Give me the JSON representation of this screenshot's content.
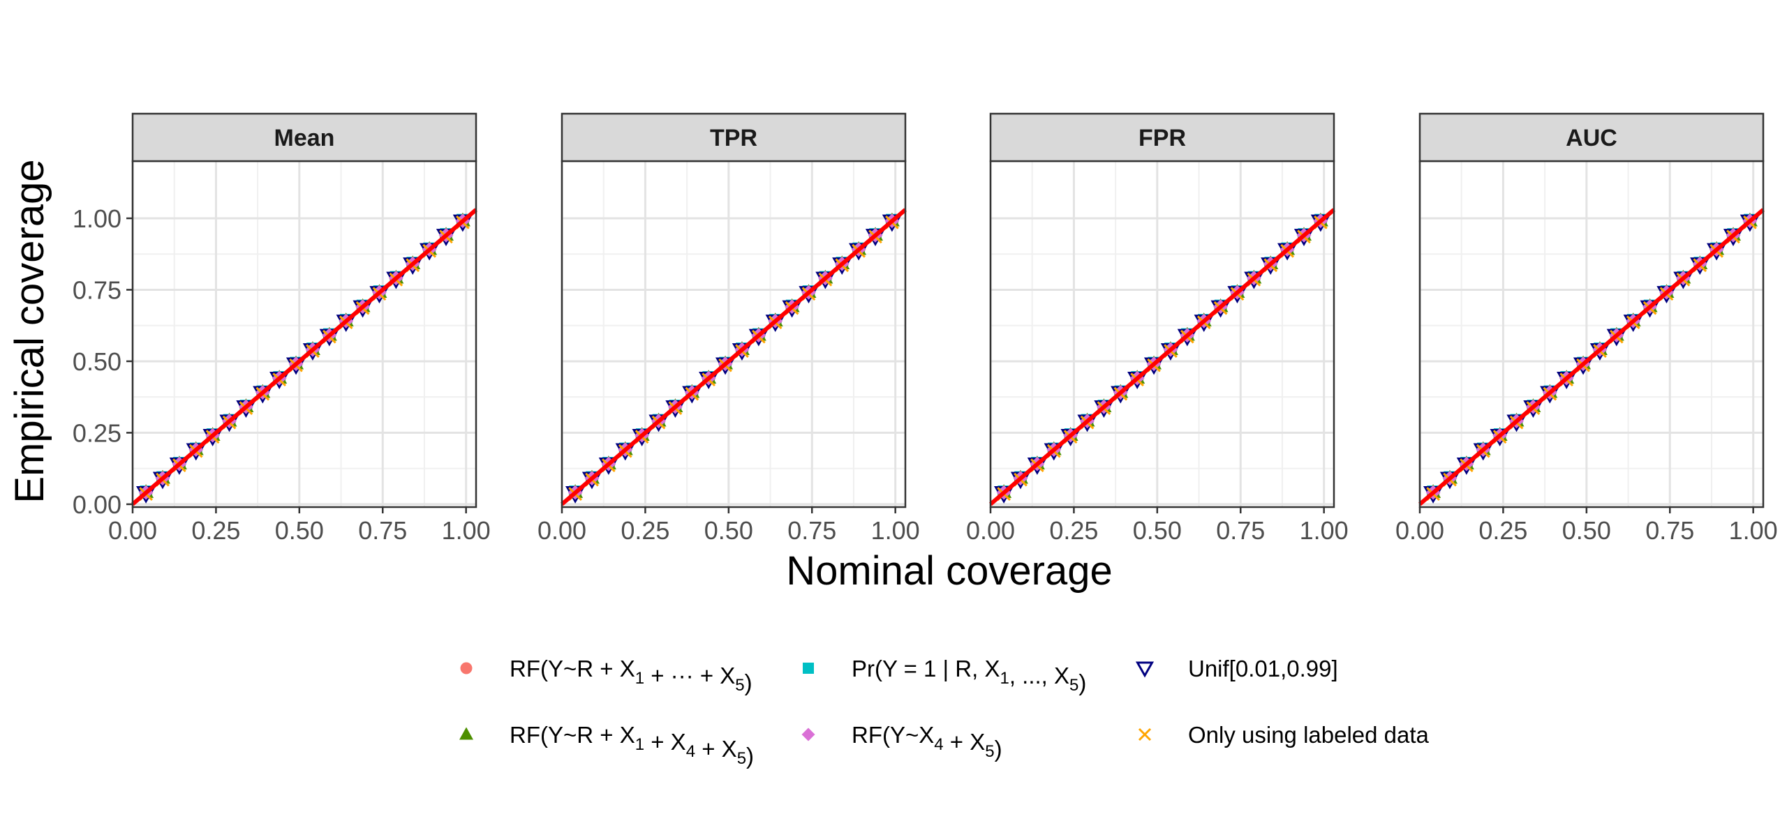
{
  "chart_data": {
    "type": "scatter",
    "facets": [
      "Mean",
      "TPR",
      "FPR",
      "AUC"
    ],
    "xlabel": "Nominal coverage",
    "ylabel": "Empirical coverage",
    "xlim": [
      0,
      1.03
    ],
    "ylim": [
      -0.01,
      1.2
    ],
    "x_ticks": [
      "0.00",
      "0.25",
      "0.50",
      "0.75",
      "1.00"
    ],
    "y_ticks": [
      "0.00",
      "0.25",
      "0.50",
      "0.75",
      "1.00"
    ],
    "x_tick_values": [
      0,
      0.25,
      0.5,
      0.75,
      1
    ],
    "y_tick_values": [
      0,
      0.25,
      0.5,
      0.75,
      1
    ],
    "nominal_levels": [
      0.04,
      0.09,
      0.14,
      0.19,
      0.24,
      0.29,
      0.34,
      0.39,
      0.44,
      0.49,
      0.54,
      0.59,
      0.64,
      0.69,
      0.74,
      0.79,
      0.84,
      0.89,
      0.94,
      0.99
    ],
    "reference_line": {
      "slope": 1,
      "intercept": 0,
      "color": "#ff0000"
    },
    "series": [
      {
        "name": "RF(Y~R + X1 + ··· + X5)",
        "shape": "circle",
        "color": "#F8766D",
        "offset": 0.0
      },
      {
        "name": "Pr(Y = 1 | R, X1, ..., X5)",
        "shape": "square",
        "color": "#00BFC4",
        "offset": 0.004
      },
      {
        "name": "Unif[0.01,0.99]",
        "shape": "triangle-down-open",
        "color": "#000080",
        "offset": -0.002
      },
      {
        "name": "RF(Y~R + X1 + X4 + X5)",
        "shape": "triangle",
        "color": "#4D8F00",
        "offset": 0.002
      },
      {
        "name": "RF(Y~X4 + X5)",
        "shape": "diamond",
        "color": "#DA70D6",
        "offset": 0.001
      },
      {
        "name": "Only using labeled data",
        "shape": "cross",
        "color": "#FFA500",
        "offset": -0.004
      }
    ]
  },
  "legend": {
    "items": [
      {
        "key": "rf_all",
        "shape": "circle",
        "color": "#F8766D",
        "parts": [
          [
            "RF(Y~R + X",
            ""
          ],
          [
            "1",
            "sub"
          ],
          [
            " + ··· + X",
            ""
          ],
          [
            "5",
            "sub"
          ],
          [
            ")",
            ""
          ]
        ]
      },
      {
        "key": "pr_true",
        "shape": "square",
        "color": "#00BFC4",
        "parts": [
          [
            "Pr(Y = 1 | R, X",
            ""
          ],
          [
            "1",
            "sub"
          ],
          [
            ", ..., X",
            ""
          ],
          [
            "5",
            "sub"
          ],
          [
            ")",
            ""
          ]
        ]
      },
      {
        "key": "unif",
        "shape": "triangle-down-open",
        "color": "#000080",
        "parts": [
          [
            "Unif[0.01,0.99]",
            ""
          ]
        ]
      },
      {
        "key": "rf_145",
        "shape": "triangle",
        "color": "#4D8F00",
        "parts": [
          [
            "RF(Y~R + X",
            ""
          ],
          [
            "1",
            "sub"
          ],
          [
            " + X",
            ""
          ],
          [
            "4",
            "sub"
          ],
          [
            " + X",
            ""
          ],
          [
            "5",
            "sub"
          ],
          [
            ")",
            ""
          ]
        ]
      },
      {
        "key": "rf_45",
        "shape": "diamond",
        "color": "#DA70D6",
        "parts": [
          [
            "RF(Y~X",
            ""
          ],
          [
            "4",
            "sub"
          ],
          [
            " + X",
            ""
          ],
          [
            "5",
            "sub"
          ],
          [
            ")",
            ""
          ]
        ]
      },
      {
        "key": "labeled",
        "shape": "cross",
        "color": "#FFA500",
        "parts": [
          [
            "Only using labeled data",
            ""
          ]
        ]
      }
    ]
  }
}
